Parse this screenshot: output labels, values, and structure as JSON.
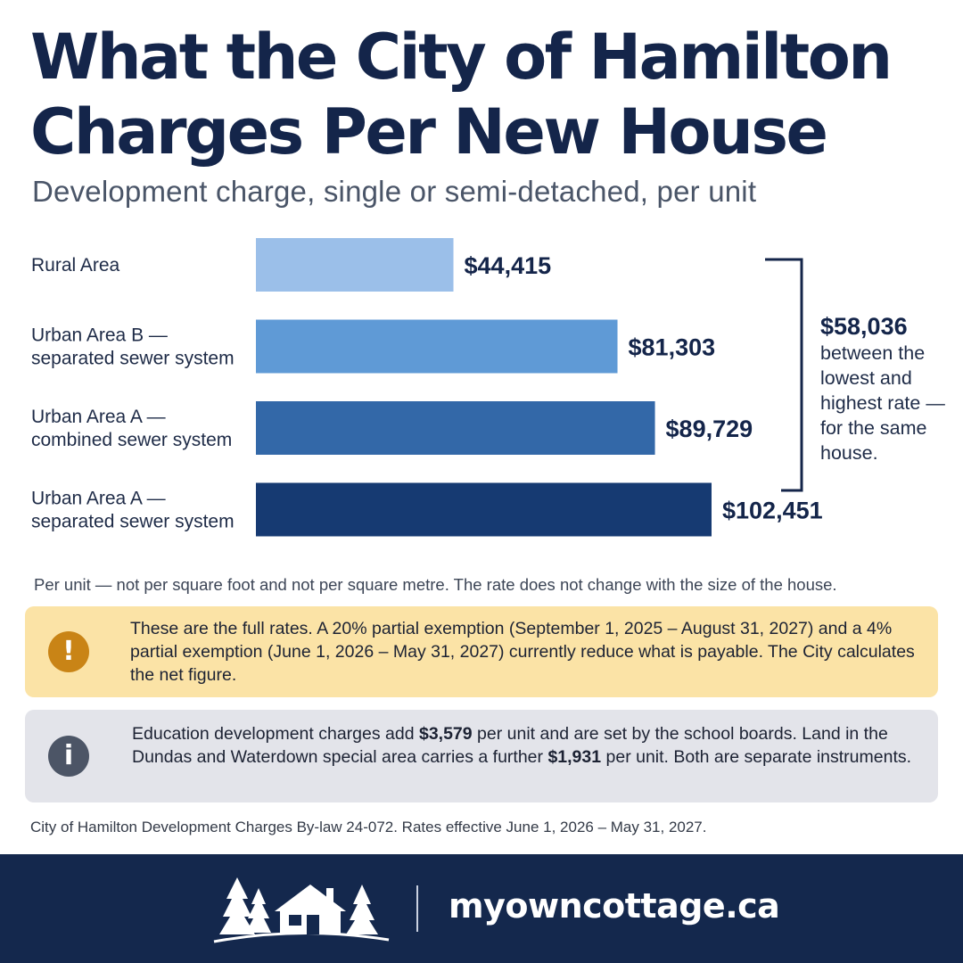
{
  "header": {
    "title": "What the City of Hamilton Charges Per New House",
    "subtitle": "Development charge, single or semi-detached, per unit"
  },
  "chart_data": {
    "type": "bar",
    "orientation": "horizontal",
    "categories": [
      [
        "Rural Area"
      ],
      [
        "Urban Area B —",
        "separated sewer system"
      ],
      [
        "Urban Area A —",
        "combined sewer system"
      ],
      [
        "Urban Area A —",
        "separated sewer system"
      ]
    ],
    "values": [
      44415,
      81303,
      89729,
      102451
    ],
    "value_labels": [
      "$44,415",
      "$81,303",
      "$89,729",
      "$102,451"
    ],
    "colors": [
      "#9bbfe9",
      "#5f9ad6",
      "#3368a8",
      "#163a72"
    ],
    "callout": {
      "value": "$58,036",
      "text": "between the lowest and highest rate — for the same house."
    }
  },
  "note": "Per unit — not per square foot and not per square metre. The rate does not change with the size of the house.",
  "warning_box": {
    "icon": "exclamation-icon",
    "color": "#c98416",
    "text": "These are the full rates. A 20% partial exemption (September 1, 2025 – August 31, 2027) and a 4% partial exemption (June 1, 2026 – May 31, 2027) currently reduce what is payable. The City calculates the net figure."
  },
  "info_box": {
    "icon": "info-icon",
    "color": "#4c5566",
    "text_part1": "Education development charges add ",
    "amount1": "$3,579",
    "text_part2": " per unit and are set by the school boards. Land in the Dundas and Waterdown special area carries a further ",
    "amount2": "$1,931",
    "text_part3": " per unit. Both are separate instruments."
  },
  "source": "City of Hamilton Development Charges By-law 24-072. Rates effective June 1, 2026 – May 31, 2027.",
  "footer": {
    "brand": "myowncottage.ca",
    "logo_icon": "cottage-trees-icon"
  }
}
